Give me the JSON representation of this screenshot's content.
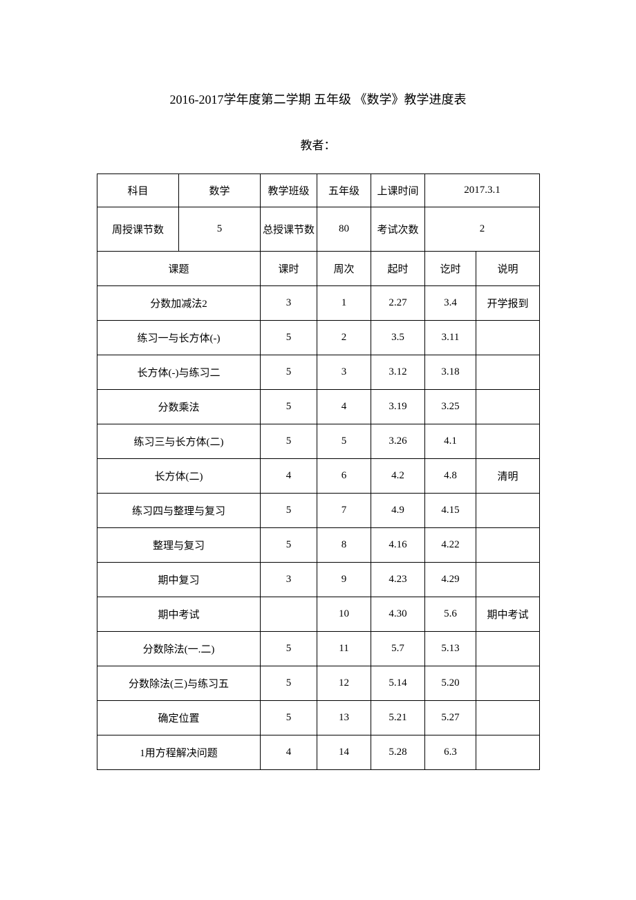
{
  "doc": {
    "title": "2016-2017学年度第二学期 五年级 《数学》教学进度表",
    "subtitle": "教者：",
    "header_row1": {
      "label_subject": "科目",
      "subject": "数学",
      "label_class": "教学班级",
      "class": "五年级",
      "label_start": "上课时间",
      "start": "2017.3.1"
    },
    "header_row2": {
      "label_weekly": "周授课节数",
      "weekly": "5",
      "label_total": "总授课节数",
      "total": "80",
      "label_exams": "考试次数",
      "exams": "2"
    },
    "columns": {
      "topic": "课题",
      "hours": "课时",
      "week": "周次",
      "start": "起时",
      "end": "讫时",
      "note": "说明"
    },
    "rows": [
      {
        "topic": "分数加减法2",
        "hours": "3",
        "week": "1",
        "start": "2.27",
        "end": "3.4",
        "note": "开学报到"
      },
      {
        "topic": "练习一与长方体(-)",
        "hours": "5",
        "week": "2",
        "start": "3.5",
        "end": "3.11",
        "note": ""
      },
      {
        "topic": "长方体(-)与练习二",
        "hours": "5",
        "week": "3",
        "start": "3.12",
        "end": "3.18",
        "note": ""
      },
      {
        "topic": "分数乘法",
        "hours": "5",
        "week": "4",
        "start": "3.19",
        "end": "3.25",
        "note": ""
      },
      {
        "topic": "练习三与长方体(二)",
        "hours": "5",
        "week": "5",
        "start": "3.26",
        "end": "4.1",
        "note": ""
      },
      {
        "topic": "长方体(二)",
        "hours": "4",
        "week": "6",
        "start": "4.2",
        "end": "4.8",
        "note": "清明"
      },
      {
        "topic": "练习四与整理与复习",
        "hours": "5",
        "week": "7",
        "start": "4.9",
        "end": "4.15",
        "note": ""
      },
      {
        "topic": "整理与复习",
        "hours": "5",
        "week": "8",
        "start": "4.16",
        "end": "4.22",
        "note": ""
      },
      {
        "topic": "期中复习",
        "hours": "3",
        "week": "9",
        "start": "4.23",
        "end": "4.29",
        "note": ""
      },
      {
        "topic": "期中考试",
        "hours": "",
        "week": "10",
        "start": "4.30",
        "end": "5.6",
        "note": "期中考试"
      },
      {
        "topic": "分数除法(一.二)",
        "hours": "5",
        "week": "11",
        "start": "5.7",
        "end": "5.13",
        "note": ""
      },
      {
        "topic": "分数除法(三)与练习五",
        "hours": "5",
        "week": "12",
        "start": "5.14",
        "end": "5.20",
        "note": ""
      },
      {
        "topic": "确定位置",
        "hours": "5",
        "week": "13",
        "start": "5.21",
        "end": "5.27",
        "note": ""
      },
      {
        "topic": "1用方程解决问题",
        "hours": "4",
        "week": "14",
        "start": "5.28",
        "end": "6.3",
        "note": ""
      }
    ]
  }
}
